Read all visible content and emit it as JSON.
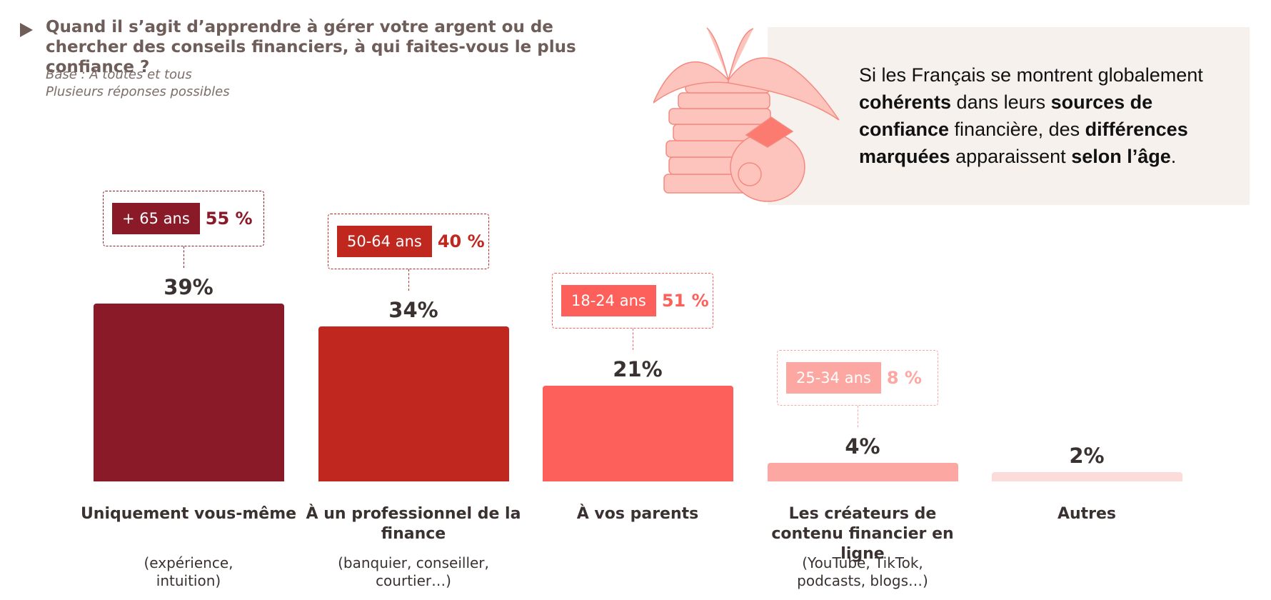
{
  "chart_data": {
    "type": "bar",
    "title": "Quand il s’agit d’apprendre à gérer votre argent ou de chercher des conseils financiers, à qui faites-vous le plus confiance  ?",
    "subtitle": [
      "Base : À toutes et tous",
      "Plusieurs réponses possibles"
    ],
    "categories": [
      "Uniquement vous-même",
      "À un professionnel de la finance",
      "À vos parents",
      "Les créateurs de contenu financier en ligne",
      "Autres"
    ],
    "category_notes": [
      "(expérience, intuition)",
      "(banquier, conseiller, courtier…)",
      null,
      "(YouTube, TikTok, podcasts, blogs…)",
      null
    ],
    "values": [
      39,
      34,
      21,
      4,
      2
    ],
    "value_labels": [
      "39%",
      "34%",
      "21%",
      "4%",
      "2%"
    ],
    "colors": [
      "#8a1a28",
      "#c0281f",
      "#fd605a",
      "#fca7a1",
      "#fcdcd9"
    ],
    "callouts": [
      {
        "group": "+ 65 ans",
        "value": 55,
        "value_label": "55 %",
        "color": "#8a1a28"
      },
      {
        "group": "50-64 ans",
        "value": 40,
        "value_label": "40 %",
        "color": "#c0281f"
      },
      {
        "group": "18-24 ans",
        "value": 51,
        "value_label": "51 %",
        "color": "#fd605a"
      },
      {
        "group": "25-34 ans",
        "value": 8,
        "value_label": "8 %",
        "color": "#fca7a1"
      },
      null
    ],
    "insight": [
      {
        "text": "Si les Français se montrent globalement ",
        "bold": false
      },
      {
        "text": "cohérents",
        "bold": true
      },
      {
        "text": " dans leurs ",
        "bold": false
      },
      {
        "text": "sources de confiance",
        "bold": true
      },
      {
        "text": " financière, des ",
        "bold": false
      },
      {
        "text": "différences marquées",
        "bold": true
      },
      {
        "text": " apparaissent ",
        "bold": false
      },
      {
        "text": "selon l’âge",
        "bold": true
      },
      {
        "text": ".",
        "bold": false
      }
    ]
  }
}
